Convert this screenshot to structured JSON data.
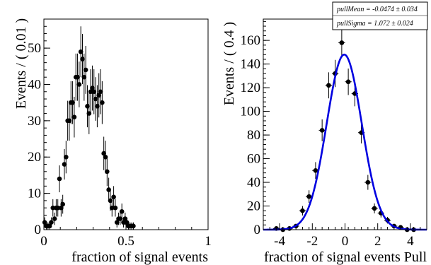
{
  "chart_data": [
    {
      "type": "scatter",
      "ylabel": "Events / ( 0.01 )",
      "xlabel": "fraction of signal events",
      "xlim": [
        0,
        1
      ],
      "ylim": [
        0,
        58
      ],
      "xticks": [
        0,
        0.5,
        1
      ],
      "xtick_labels": [
        "0",
        "0.5",
        "1"
      ],
      "yticks": [
        0,
        10,
        20,
        30,
        40,
        50
      ],
      "ytick_labels": [
        "0",
        "10",
        "20",
        "30",
        "40",
        "50"
      ],
      "grid": false,
      "series": [
        {
          "marker": "filled-circle-with-error-bars",
          "x": [
            0.005,
            0.015,
            0.025,
            0.035,
            0.045,
            0.055,
            0.065,
            0.075,
            0.085,
            0.095,
            0.105,
            0.115,
            0.125,
            0.135,
            0.145,
            0.155,
            0.165,
            0.175,
            0.185,
            0.195,
            0.205,
            0.215,
            0.225,
            0.235,
            0.245,
            0.255,
            0.265,
            0.275,
            0.285,
            0.295,
            0.305,
            0.315,
            0.325,
            0.335,
            0.345,
            0.355,
            0.365,
            0.375,
            0.385,
            0.395,
            0.405,
            0.415,
            0.425,
            0.435,
            0.445,
            0.455,
            0.465,
            0.475,
            0.485,
            0.495,
            0.505,
            0.515,
            0.525,
            0.535,
            0.545
          ],
          "y": [
            2,
            1,
            1,
            1,
            2,
            6,
            3,
            6,
            6,
            14,
            6,
            7,
            18,
            20,
            30,
            30,
            35,
            35,
            31,
            42,
            42,
            40,
            49,
            47,
            42,
            44,
            34,
            32,
            38,
            39,
            38,
            36,
            34,
            37,
            38,
            35,
            21,
            20,
            16,
            11,
            8,
            6,
            9,
            6,
            2,
            3,
            3,
            5,
            2,
            3,
            2,
            1,
            1,
            1,
            1
          ],
          "yerr_lo": [
            1.4,
            1,
            1,
            1,
            1.4,
            2.4,
            1.7,
            2.4,
            2.4,
            3.7,
            2.4,
            2.6,
            4.2,
            4.5,
            5.5,
            5.5,
            5.9,
            5.9,
            5.6,
            6.5,
            6.5,
            6.3,
            7,
            6.9,
            6.5,
            6.6,
            5.8,
            5.7,
            6.2,
            6.2,
            6.2,
            6,
            5.8,
            6.1,
            6.2,
            5.9,
            4.6,
            4.5,
            4,
            3.3,
            2.8,
            2.4,
            3,
            2.4,
            1.4,
            1.7,
            1.7,
            2.2,
            1.4,
            1.7,
            1.4,
            1,
            1,
            1,
            1
          ],
          "yerr_hi": [
            1.4,
            1,
            1,
            1,
            1.4,
            2.4,
            1.7,
            2.4,
            2.4,
            3.7,
            2.4,
            2.6,
            4.2,
            4.5,
            5.5,
            5.5,
            5.9,
            5.9,
            5.6,
            6.5,
            6.5,
            6.3,
            7,
            6.9,
            6.5,
            6.6,
            5.8,
            5.7,
            6.2,
            6.2,
            6.2,
            6,
            5.8,
            6.1,
            6.2,
            5.9,
            4.6,
            4.5,
            4,
            3.3,
            2.8,
            2.4,
            3,
            2.4,
            1.4,
            1.7,
            1.7,
            2.2,
            1.4,
            1.7,
            1.4,
            1,
            1,
            1,
            1
          ]
        }
      ]
    },
    {
      "type": "scatter",
      "ylabel": "Events / ( 0.4 )",
      "xlabel": "fraction of signal events Pull",
      "xlim": [
        -5,
        5
      ],
      "ylim": [
        0,
        178
      ],
      "xticks": [
        -4,
        -2,
        0,
        2,
        4
      ],
      "xtick_labels": [
        "-4",
        "-2",
        "0",
        "2",
        "4"
      ],
      "yticks": [
        0,
        20,
        40,
        60,
        80,
        100,
        120,
        140,
        160
      ],
      "ytick_labels": [
        "0",
        "20",
        "40",
        "60",
        "80",
        "100",
        "120",
        "140",
        "160"
      ],
      "grid": false,
      "series": [
        {
          "marker": "filled-circle-with-error-bars",
          "x": [
            -4.2,
            -3.8,
            -3.4,
            -3.0,
            -2.6,
            -2.2,
            -1.8,
            -1.4,
            -1.0,
            -0.6,
            -0.2,
            0.2,
            0.6,
            1.0,
            1.4,
            1.8,
            2.2,
            2.6,
            3.0,
            3.4,
            3.8,
            4.2
          ],
          "y": [
            1,
            0,
            1,
            3,
            16,
            28,
            50,
            84,
            122,
            132,
            158,
            125,
            115,
            82,
            40,
            18,
            14,
            8,
            3,
            2,
            0,
            0
          ],
          "yerr": [
            1,
            0,
            1,
            1.7,
            4,
            5.3,
            7.1,
            9.2,
            11,
            11.5,
            12.6,
            11.2,
            10.7,
            9.1,
            6.3,
            4.2,
            3.7,
            2.8,
            1.7,
            1.4,
            0,
            0
          ]
        },
        {
          "name": "fit",
          "type": "line",
          "color": "#0000e0",
          "function": "gaussian",
          "mean": -0.0474,
          "sigma": 1.072,
          "amplitude": 148
        }
      ],
      "stats_box": {
        "lines": [
          "pullMean = -0.0474 ± 0.034",
          "pullSigma =  1.072 ± 0.024"
        ]
      }
    }
  ]
}
